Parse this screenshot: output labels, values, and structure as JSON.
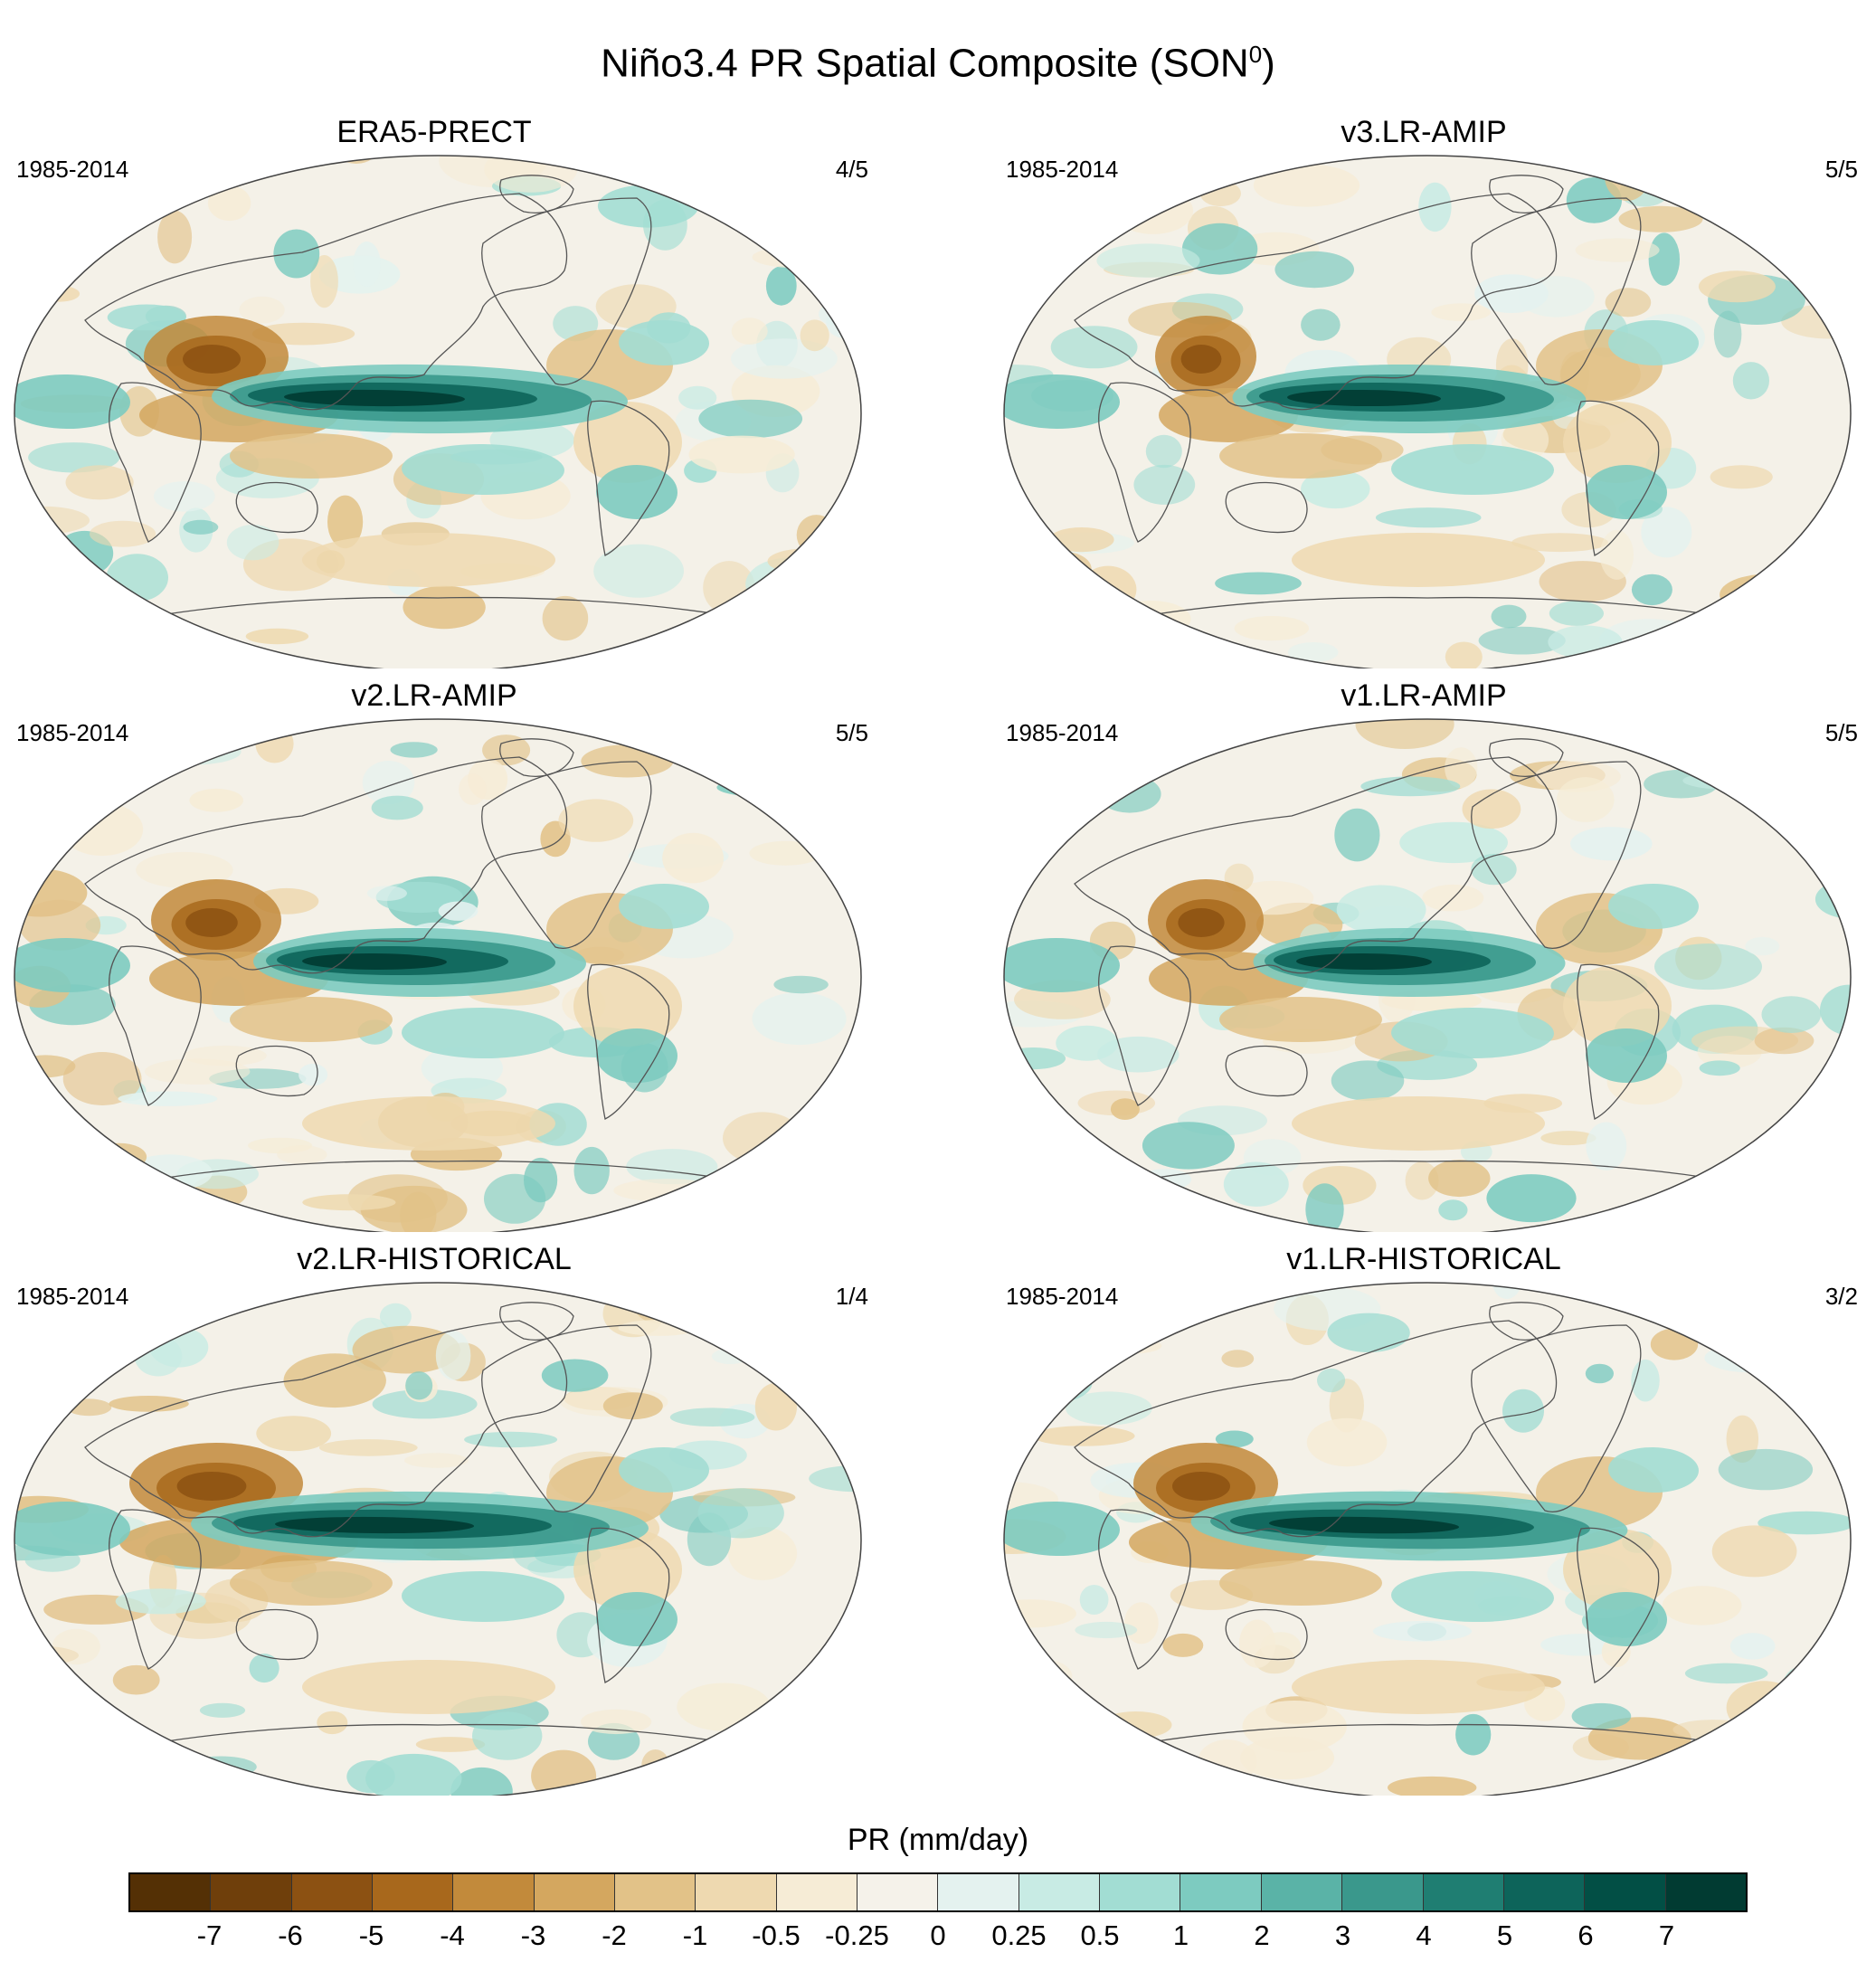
{
  "figure": {
    "title_main": "Niño3.4 PR Spatial Composite (SON",
    "title_sup": "0",
    "title_end": ")"
  },
  "panels": [
    {
      "name": "ERA5-PRECT",
      "period": "1985-2014",
      "ratio": "4/5"
    },
    {
      "name": "v3.LR-AMIP",
      "period": "1985-2014",
      "ratio": "5/5"
    },
    {
      "name": "v2.LR-AMIP",
      "period": "1985-2014",
      "ratio": "5/5"
    },
    {
      "name": "v1.LR-AMIP",
      "period": "1985-2014",
      "ratio": "5/5"
    },
    {
      "name": "v2.LR-HISTORICAL",
      "period": "1985-2014",
      "ratio": "1/4"
    },
    {
      "name": "v1.LR-HISTORICAL",
      "period": "1985-2014",
      "ratio": "3/2"
    }
  ],
  "colorbar": {
    "label": "PR (mm/day)",
    "ticks": [
      "-7",
      "-6",
      "-5",
      "-4",
      "-3",
      "-2",
      "-1",
      "-0.5",
      "-0.25",
      "0",
      "0.25",
      "0.5",
      "1",
      "2",
      "3",
      "4",
      "5",
      "6",
      "7"
    ],
    "colors": [
      "#543005",
      "#6f3f0b",
      "#8c5112",
      "#a8681c",
      "#c28a3b",
      "#d4a75f",
      "#e2c288",
      "#eed9b0",
      "#f6ecd6",
      "#f5f2ea",
      "#e4f2ef",
      "#c8ebe4",
      "#a2ddd3",
      "#7dcbc0",
      "#5ab3a7",
      "#3a988c",
      "#1f7e72",
      "#0d645a",
      "#024f45",
      "#013b32"
    ]
  },
  "colors": {
    "ocean_base": "#f4f1e8",
    "wet": "#1f7e72",
    "dry": "#8c5112",
    "coast": "#555555"
  }
}
